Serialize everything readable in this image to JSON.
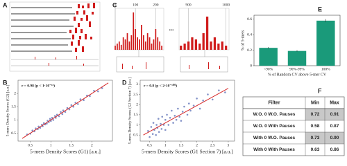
{
  "panel_labels": [
    "A",
    "B",
    "C",
    "D",
    "E",
    "F"
  ],
  "chart_data": [
    {
      "type": "scatter",
      "x_label": "5-mers Density Scores (G1) [a.u.]",
      "y_label": "5-mers Density Scores (G2) [a.u.]",
      "annotation": "r = 0.98 (p < 1·10⁻¹⁶)",
      "color": "#5b6fb5",
      "x": [
        0.42,
        0.5,
        0.55,
        0.6,
        0.63,
        0.68,
        0.7,
        0.74,
        0.78,
        0.8,
        0.83,
        0.86,
        0.9,
        0.92,
        0.95,
        0.98,
        1.0,
        1.03,
        1.06,
        1.1,
        1.12,
        1.15,
        1.2,
        1.24,
        1.28,
        1.3,
        1.35,
        1.4,
        1.45,
        1.5,
        1.55,
        1.6,
        1.66,
        1.72,
        1.8,
        1.88,
        1.95,
        2.05,
        2.15,
        2.25
      ],
      "y": [
        0.45,
        0.48,
        0.6,
        0.57,
        0.68,
        0.65,
        0.75,
        0.7,
        0.82,
        0.76,
        0.88,
        0.83,
        0.86,
        0.97,
        0.92,
        1.04,
        0.96,
        1.08,
        1.0,
        1.15,
        1.08,
        1.2,
        1.14,
        1.3,
        1.22,
        1.36,
        1.3,
        1.45,
        1.4,
        1.56,
        1.5,
        1.65,
        1.6,
        1.78,
        1.75,
        1.92,
        1.9,
        2.1,
        2.08,
        2.2
      ],
      "fit": {
        "x": [
          0.3,
          2.4
        ],
        "y": [
          0.3,
          2.4
        ],
        "color": "#d62728"
      },
      "xlim": [
        0.2,
        2.5
      ],
      "ylim": [
        0.2,
        2.5
      ],
      "xticks": [
        0.5,
        1,
        1.5,
        2
      ],
      "yticks": [
        0.5,
        1,
        1.5,
        2
      ]
    },
    {
      "type": "bar",
      "color": "#d01c1c",
      "annotation": "...",
      "x": [
        0,
        10,
        20,
        30,
        40,
        50,
        60,
        70,
        80,
        90,
        100,
        110,
        120,
        130,
        140,
        150,
        160,
        170,
        180,
        190,
        200,
        210,
        220,
        230
      ],
      "values": [
        0.1,
        0.15,
        0.2,
        0.12,
        0.3,
        0.25,
        0.4,
        0.2,
        0.35,
        0.9,
        0.5,
        0.3,
        0.25,
        0.6,
        0.35,
        0.2,
        0.4,
        0.3,
        0.15,
        0.25,
        0.5,
        0.3,
        0.2,
        0.1
      ],
      "xlim": [
        0,
        240
      ],
      "ylim": [
        0,
        1
      ],
      "xticks": [
        0,
        100,
        200
      ]
    },
    {
      "type": "bar",
      "color": "#d01c1c",
      "x": [
        880,
        890,
        900,
        910,
        920,
        930,
        940,
        950,
        960,
        970,
        980,
        990,
        1000
      ],
      "values": [
        0.1,
        0.15,
        0.2,
        0.3,
        0.25,
        0.15,
        0.4,
        0.8,
        0.2,
        0.3,
        0.15,
        0.2,
        0.1
      ],
      "xlim": [
        875,
        1008
      ],
      "ylim": [
        0,
        1
      ],
      "xticks": [
        900,
        1000
      ]
    },
    {
      "type": "scatter",
      "x_label": "5-mers Density Scores (G1 Section 7) [a.u.]",
      "y_label": "5-mers Density Scores (G2 Section 7) [a.u.]",
      "annotation": "r = 0.8 (p < 2·10⁻¹⁰⁰)",
      "color": "#5b6fb5",
      "x": [
        0.45,
        0.5,
        0.55,
        0.6,
        0.62,
        0.65,
        0.7,
        0.72,
        0.75,
        0.78,
        0.8,
        0.85,
        0.88,
        0.9,
        0.95,
        1.0,
        1.0,
        1.05,
        1.1,
        1.15,
        1.2,
        1.25,
        1.3,
        1.35,
        1.4,
        1.45,
        1.5,
        1.55,
        1.6,
        1.7,
        1.75,
        1.8,
        1.9,
        2.0,
        2.1,
        2.2,
        2.35,
        2.5,
        2.7,
        2.9
      ],
      "y": [
        0.7,
        0.4,
        0.9,
        0.55,
        1.1,
        0.75,
        0.5,
        1.0,
        0.85,
        1.3,
        0.65,
        1.05,
        0.8,
        1.4,
        1.0,
        0.75,
        1.25,
        1.5,
        1.0,
        1.35,
        1.7,
        1.1,
        1.45,
        1.25,
        1.8,
        1.4,
        1.2,
        1.65,
        1.9,
        1.5,
        2.05,
        1.7,
        1.95,
        2.3,
        1.8,
        2.2,
        2.5,
        2.25,
        2.7,
        2.6
      ],
      "fit": {
        "x": [
          0.3,
          3.0
        ],
        "y": [
          0.5,
          2.8
        ],
        "color": "#d62728"
      },
      "xlim": [
        0.2,
        3.2
      ],
      "ylim": [
        0.2,
        3.2
      ],
      "xticks": [
        0.5,
        1,
        1.5,
        2,
        2.5,
        3
      ],
      "yticks": [
        0.5,
        1,
        1.5,
        2,
        2.5,
        3
      ]
    },
    {
      "type": "bar",
      "color": "#1a9a7a",
      "x_label": "% of Random CV above 5-mer CV",
      "y_label": "% of 5-mers",
      "categories": [
        "<90%",
        "90%-99%",
        "100%"
      ],
      "values": [
        0.23,
        0.19,
        0.58
      ],
      "errors": [
        0.01,
        0.01,
        0.02
      ],
      "ylim": [
        0,
        0.65
      ],
      "yticks": [
        0,
        0.2,
        0.4,
        0.6
      ]
    }
  ],
  "table": {
    "header": [
      "Filter",
      "Min",
      "Max"
    ],
    "rows": [
      [
        "W.O. 0 W.O. Pauses",
        "0.72",
        "0.91"
      ],
      [
        "W.O. 0 With Pauses",
        "0.58",
        "0.87"
      ],
      [
        "With 0 W.O. Pauses",
        "0.73",
        "0.90"
      ],
      [
        "With 0 With Pauses",
        "0.63",
        "0.86"
      ]
    ],
    "highlighted_rows": [
      0,
      2
    ]
  }
}
